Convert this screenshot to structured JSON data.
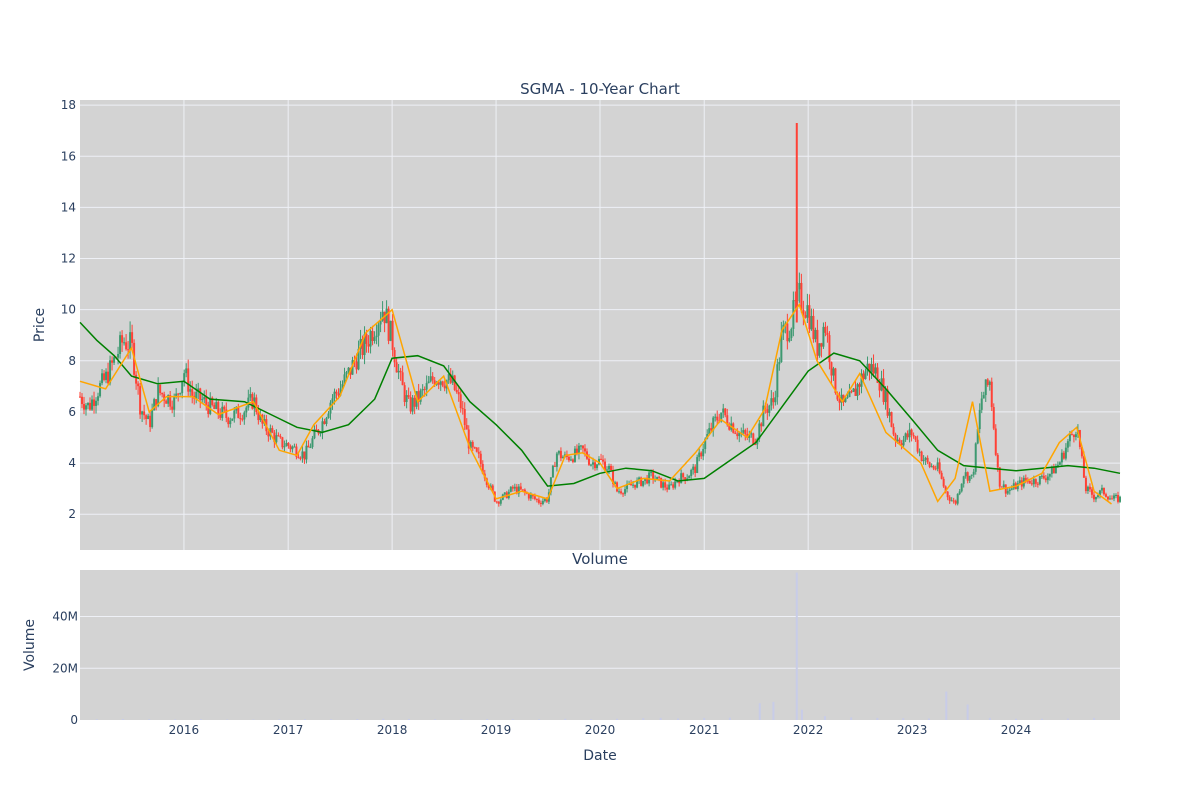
{
  "chart_data": [
    {
      "type": "candlestick",
      "title": "SGMA - 10-Year Chart",
      "xlabel": "",
      "ylabel": "Price",
      "ylim": [
        0.6,
        18.2
      ],
      "yticks": [
        2,
        4,
        6,
        8,
        10,
        12,
        14,
        16,
        18
      ],
      "xlim": [
        "2015-01-01",
        "2024-12-31"
      ],
      "grid": true,
      "legend": "none",
      "colors": {
        "up": "#3d9970",
        "down": "#ff4136",
        "ma_short": "#ffa500",
        "ma_long": "#008000",
        "background": "#d3d3d3",
        "grid": "#eef0f6"
      },
      "series": [
        {
          "kind": "ohlc-close",
          "x": [
            "2015-01-01",
            "2015-02-01",
            "2015-03-01",
            "2015-04-01",
            "2015-05-01",
            "2015-06-01",
            "2015-07-01",
            "2015-08-01",
            "2015-09-01",
            "2015-10-01",
            "2015-11-01",
            "2015-12-01",
            "2016-01-01",
            "2016-02-01",
            "2016-03-01",
            "2016-04-01",
            "2016-05-01",
            "2016-06-01",
            "2016-07-01",
            "2016-08-01",
            "2016-09-01",
            "2016-10-01",
            "2016-11-01",
            "2016-12-01",
            "2017-01-01",
            "2017-02-01",
            "2017-03-01",
            "2017-04-01",
            "2017-05-01",
            "2017-06-01",
            "2017-07-01",
            "2017-08-01",
            "2017-09-01",
            "2017-10-01",
            "2017-11-01",
            "2017-12-01",
            "2018-01-01",
            "2018-02-01",
            "2018-03-01",
            "2018-04-01",
            "2018-05-01",
            "2018-06-01",
            "2018-07-01",
            "2018-08-01",
            "2018-09-01",
            "2018-10-01",
            "2018-11-01",
            "2018-12-01",
            "2019-01-01",
            "2019-02-01",
            "2019-03-01",
            "2019-04-01",
            "2019-05-01",
            "2019-06-01",
            "2019-07-01",
            "2019-08-01",
            "2019-09-01",
            "2019-10-01",
            "2019-11-01",
            "2019-12-01",
            "2020-01-01",
            "2020-02-01",
            "2020-03-01",
            "2020-04-01",
            "2020-05-01",
            "2020-06-01",
            "2020-07-01",
            "2020-08-01",
            "2020-09-01",
            "2020-10-01",
            "2020-11-01",
            "2020-12-01",
            "2021-01-01",
            "2021-02-01",
            "2021-03-01",
            "2021-04-01",
            "2021-05-01",
            "2021-06-01",
            "2021-07-01",
            "2021-08-01",
            "2021-09-01",
            "2021-10-01",
            "2021-11-01",
            "2021-12-01",
            "2022-01-01",
            "2022-02-01",
            "2022-03-01",
            "2022-04-01",
            "2022-05-01",
            "2022-06-01",
            "2022-07-01",
            "2022-08-01",
            "2022-09-01",
            "2022-10-01",
            "2022-11-01",
            "2022-12-01",
            "2023-01-01",
            "2023-02-01",
            "2023-03-01",
            "2023-04-01",
            "2023-05-01",
            "2023-06-01",
            "2023-07-01",
            "2023-08-01",
            "2023-09-01",
            "2023-10-01",
            "2023-11-01",
            "2023-12-01",
            "2024-01-01",
            "2024-02-01",
            "2024-03-01",
            "2024-04-01",
            "2024-05-01",
            "2024-06-01",
            "2024-07-01",
            "2024-08-01",
            "2024-09-01",
            "2024-10-01",
            "2024-11-01",
            "2024-12-01"
          ],
          "y": [
            6.6,
            6.2,
            6.8,
            7.3,
            8.0,
            8.8,
            8.6,
            6.2,
            5.5,
            6.8,
            6.6,
            6.4,
            7.6,
            6.6,
            6.5,
            6.2,
            6.0,
            5.8,
            5.9,
            6.1,
            6.5,
            5.5,
            5.2,
            4.8,
            4.7,
            4.5,
            4.3,
            5.0,
            5.6,
            6.5,
            6.9,
            7.5,
            8.2,
            8.7,
            9.4,
            10.1,
            8.8,
            7.1,
            6.2,
            6.5,
            6.9,
            7.4,
            7.3,
            7.1,
            6.2,
            4.6,
            4.2,
            3.3,
            2.5,
            2.7,
            3.0,
            2.9,
            2.7,
            2.5,
            2.6,
            4.4,
            4.2,
            4.3,
            4.5,
            4.0,
            4.1,
            3.8,
            2.9,
            3.0,
            3.2,
            3.3,
            3.5,
            3.2,
            3.0,
            3.4,
            3.5,
            3.8,
            4.8,
            5.5,
            6.0,
            5.6,
            5.2,
            5.0,
            5.0,
            6.1,
            6.4,
            9.0,
            9.5,
            10.5,
            10.0,
            8.5,
            9.5,
            7.2,
            6.2,
            6.5,
            7.2,
            7.8,
            7.5,
            6.5,
            5.0,
            4.9,
            5.2,
            4.3,
            3.9,
            3.8,
            2.8,
            2.4,
            3.6,
            3.4,
            6.5,
            7.2,
            3.3,
            2.9,
            3.1,
            3.3,
            3.3,
            3.4,
            3.6,
            4.0,
            4.8,
            5.5,
            3.0,
            2.7,
            2.9,
            2.6
          ],
          "annotation_peak": {
            "x": "2021-11-22",
            "y": 17.3
          }
        },
        {
          "kind": "moving-average-short",
          "x": [
            "2015-01-01",
            "2015-04-01",
            "2015-07-01",
            "2015-09-01",
            "2015-11-01",
            "2016-02-01",
            "2016-05-01",
            "2016-09-01",
            "2016-12-01",
            "2017-02-01",
            "2017-04-01",
            "2017-07-01",
            "2017-10-01",
            "2018-01-01",
            "2018-04-01",
            "2018-07-01",
            "2018-10-01",
            "2019-01-01",
            "2019-04-01",
            "2019-07-01",
            "2019-09-01",
            "2019-11-01",
            "2020-01-01",
            "2020-03-01",
            "2020-06-01",
            "2020-09-01",
            "2020-12-01",
            "2021-03-01",
            "2021-06-01",
            "2021-08-01",
            "2021-10-01",
            "2021-12-01",
            "2022-02-01",
            "2022-05-01",
            "2022-07-01",
            "2022-10-01",
            "2022-12-01",
            "2023-02-01",
            "2023-04-01",
            "2023-06-01",
            "2023-08-01",
            "2023-10-01",
            "2024-01-01",
            "2024-04-01",
            "2024-06-01",
            "2024-08-01",
            "2024-10-01",
            "2024-12-01"
          ],
          "y": [
            7.2,
            6.9,
            8.5,
            6.0,
            6.6,
            6.6,
            5.9,
            6.4,
            4.5,
            4.3,
            5.5,
            6.6,
            9.1,
            10.0,
            6.4,
            7.4,
            4.6,
            2.6,
            2.9,
            2.6,
            4.3,
            4.4,
            4.0,
            3.0,
            3.4,
            3.3,
            4.4,
            5.7,
            5.0,
            6.1,
            9.2,
            10.2,
            8.0,
            6.4,
            7.5,
            5.2,
            4.6,
            4.0,
            2.5,
            3.4,
            6.4,
            2.9,
            3.1,
            3.6,
            4.8,
            5.4,
            2.9,
            2.4
          ]
        },
        {
          "kind": "moving-average-long",
          "x": [
            "2015-01-01",
            "2015-03-01",
            "2015-05-01",
            "2015-07-01",
            "2015-10-01",
            "2016-01-01",
            "2016-04-01",
            "2016-08-01",
            "2016-11-01",
            "2017-02-01",
            "2017-05-01",
            "2017-08-01",
            "2017-11-01",
            "2018-01-01",
            "2018-04-01",
            "2018-07-01",
            "2018-10-01",
            "2019-01-01",
            "2019-04-01",
            "2019-07-01",
            "2019-10-01",
            "2020-01-01",
            "2020-04-01",
            "2020-07-01",
            "2020-10-01",
            "2021-01-01",
            "2021-04-01",
            "2021-07-01",
            "2021-10-01",
            "2022-01-01",
            "2022-04-01",
            "2022-07-01",
            "2022-10-01",
            "2023-01-01",
            "2023-04-01",
            "2023-07-01",
            "2023-10-01",
            "2024-01-01",
            "2024-04-01",
            "2024-07-01",
            "2024-10-01",
            "2024-12-31"
          ],
          "y": [
            9.5,
            8.8,
            8.2,
            7.4,
            7.1,
            7.2,
            6.5,
            6.4,
            5.9,
            5.4,
            5.2,
            5.5,
            6.5,
            8.1,
            8.2,
            7.8,
            6.4,
            5.5,
            4.5,
            3.1,
            3.2,
            3.6,
            3.8,
            3.7,
            3.3,
            3.4,
            4.1,
            4.8,
            6.2,
            7.6,
            8.3,
            8.0,
            6.9,
            5.7,
            4.5,
            3.9,
            3.8,
            3.7,
            3.8,
            3.9,
            3.8,
            3.6
          ]
        }
      ]
    },
    {
      "type": "bar",
      "title": "Volume",
      "xlabel": "Date",
      "ylabel": "Volume",
      "ylim": [
        0,
        58000000
      ],
      "yticks": [
        0,
        20000000,
        40000000
      ],
      "ytick_labels": [
        "0",
        "20M",
        "40M"
      ],
      "xlim": [
        "2015-01-01",
        "2024-12-31"
      ],
      "xtick_labels": [
        "2016",
        "2017",
        "2018",
        "2019",
        "2020",
        "2021",
        "2022",
        "2023",
        "2024"
      ],
      "grid": true,
      "colors": {
        "bar": "#c8cce8",
        "background": "#d3d3d3",
        "grid": "#eef0f6"
      },
      "x": [
        "2015-03-01",
        "2015-06-01",
        "2015-09-01",
        "2015-12-01",
        "2016-03-01",
        "2016-06-01",
        "2016-09-01",
        "2016-12-01",
        "2017-03-01",
        "2017-06-01",
        "2017-09-01",
        "2017-12-01",
        "2018-03-01",
        "2018-06-01",
        "2018-09-01",
        "2018-12-01",
        "2019-03-01",
        "2019-06-01",
        "2019-09-01",
        "2019-12-01",
        "2020-03-01",
        "2020-06-01",
        "2020-08-01",
        "2020-10-01",
        "2021-01-01",
        "2021-04-01",
        "2021-07-15",
        "2021-09-01",
        "2021-11-22",
        "2021-12-10",
        "2022-03-01",
        "2022-06-01",
        "2022-09-01",
        "2022-12-01",
        "2023-03-01",
        "2023-05-01",
        "2023-07-15",
        "2023-10-01",
        "2024-01-01",
        "2024-04-01",
        "2024-07-01",
        "2024-10-01"
      ],
      "values": [
        300000,
        400000,
        300000,
        200000,
        300000,
        200000,
        200000,
        200000,
        300000,
        300000,
        400000,
        500000,
        400000,
        300000,
        300000,
        400000,
        300000,
        300000,
        500000,
        300000,
        500000,
        700000,
        800000,
        600000,
        800000,
        900000,
        6500000,
        7000000,
        57000000,
        4000000,
        1500000,
        1000000,
        800000,
        700000,
        600000,
        11000000,
        6000000,
        800000,
        500000,
        500000,
        600000,
        800000
      ]
    }
  ]
}
